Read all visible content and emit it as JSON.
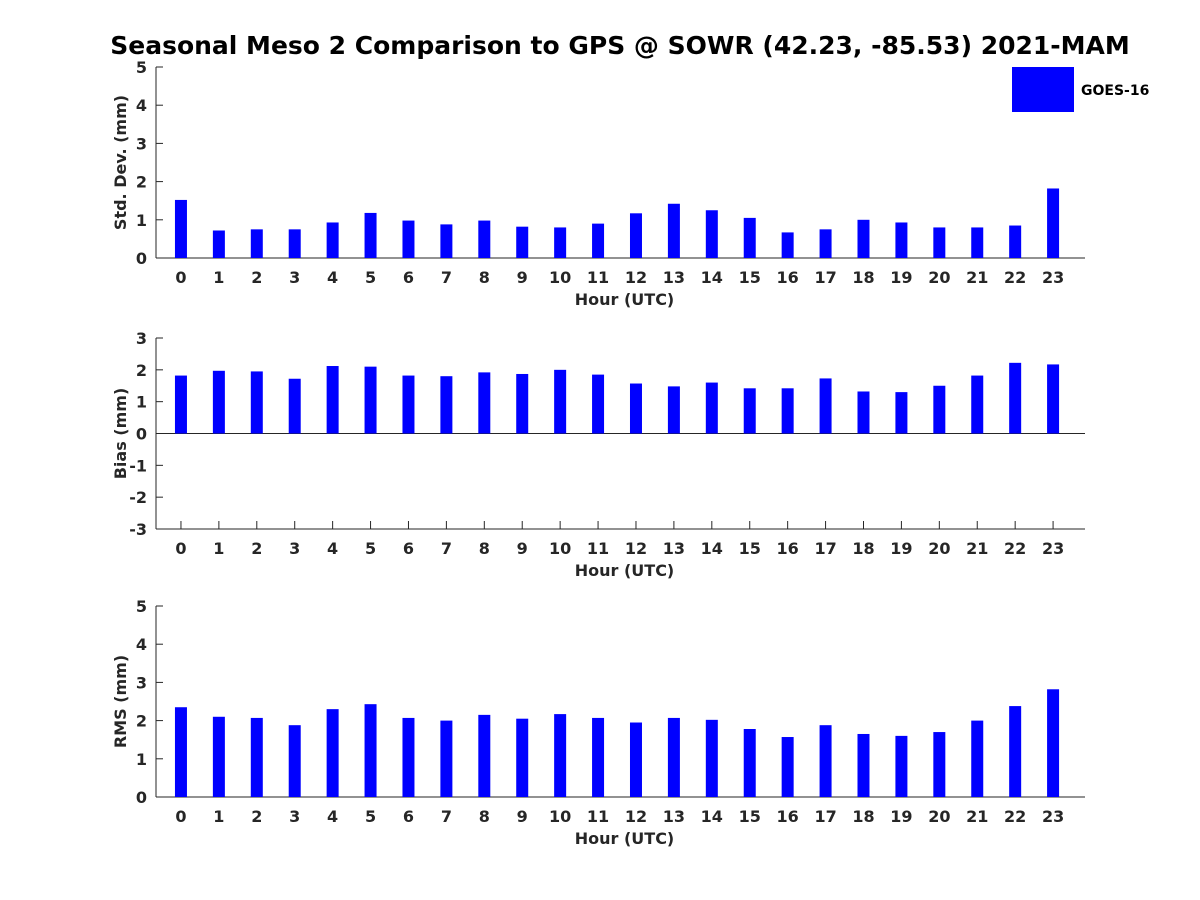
{
  "title": "Seasonal Meso 2 Comparison to GPS @ SOWR (42.23, -85.53) 2021-MAM",
  "legend": {
    "label": "GOES-16",
    "color": "#0000ff",
    "placement": "top-right"
  },
  "chart_data": [
    {
      "type": "bar",
      "xlabel": "Hour (UTC)",
      "ylabel": "Std. Dev. (mm)",
      "ylim": [
        0,
        5
      ],
      "yticks": [
        0,
        1,
        2,
        3,
        4,
        5
      ],
      "categories": [
        "0",
        "1",
        "2",
        "3",
        "4",
        "5",
        "6",
        "7",
        "8",
        "9",
        "10",
        "11",
        "12",
        "13",
        "14",
        "15",
        "16",
        "17",
        "18",
        "19",
        "20",
        "21",
        "22",
        "23"
      ],
      "series": [
        {
          "name": "GOES-16",
          "color": "#0000ff",
          "values": [
            1.52,
            0.72,
            0.75,
            0.75,
            0.93,
            1.18,
            0.98,
            0.88,
            0.98,
            0.82,
            0.8,
            0.9,
            1.17,
            1.42,
            1.25,
            1.05,
            0.67,
            0.75,
            1.0,
            0.93,
            0.8,
            0.8,
            0.85,
            1.82
          ]
        }
      ]
    },
    {
      "type": "bar",
      "xlabel": "Hour (UTC)",
      "ylabel": "Bias (mm)",
      "ylim": [
        -3,
        3
      ],
      "yticks": [
        -3,
        -2,
        -1,
        0,
        1,
        2,
        3
      ],
      "categories": [
        "0",
        "1",
        "2",
        "3",
        "4",
        "5",
        "6",
        "7",
        "8",
        "9",
        "10",
        "11",
        "12",
        "13",
        "14",
        "15",
        "16",
        "17",
        "18",
        "19",
        "20",
        "21",
        "22",
        "23"
      ],
      "series": [
        {
          "name": "GOES-16",
          "color": "#0000ff",
          "values": [
            1.82,
            1.97,
            1.95,
            1.72,
            2.12,
            2.1,
            1.82,
            1.8,
            1.92,
            1.87,
            2.0,
            1.85,
            1.57,
            1.48,
            1.6,
            1.42,
            1.42,
            1.73,
            1.32,
            1.3,
            1.5,
            1.82,
            2.22,
            2.17
          ]
        }
      ]
    },
    {
      "type": "bar",
      "xlabel": "Hour (UTC)",
      "ylabel": "RMS (mm)",
      "ylim": [
        0,
        5
      ],
      "yticks": [
        0,
        1,
        2,
        3,
        4,
        5
      ],
      "categories": [
        "0",
        "1",
        "2",
        "3",
        "4",
        "5",
        "6",
        "7",
        "8",
        "9",
        "10",
        "11",
        "12",
        "13",
        "14",
        "15",
        "16",
        "17",
        "18",
        "19",
        "20",
        "21",
        "22",
        "23"
      ],
      "series": [
        {
          "name": "GOES-16",
          "color": "#0000ff",
          "values": [
            2.35,
            2.1,
            2.07,
            1.88,
            2.3,
            2.43,
            2.07,
            2.0,
            2.15,
            2.05,
            2.17,
            2.07,
            1.95,
            2.07,
            2.02,
            1.78,
            1.57,
            1.88,
            1.65,
            1.6,
            1.7,
            2.0,
            2.38,
            2.82
          ]
        }
      ]
    }
  ]
}
